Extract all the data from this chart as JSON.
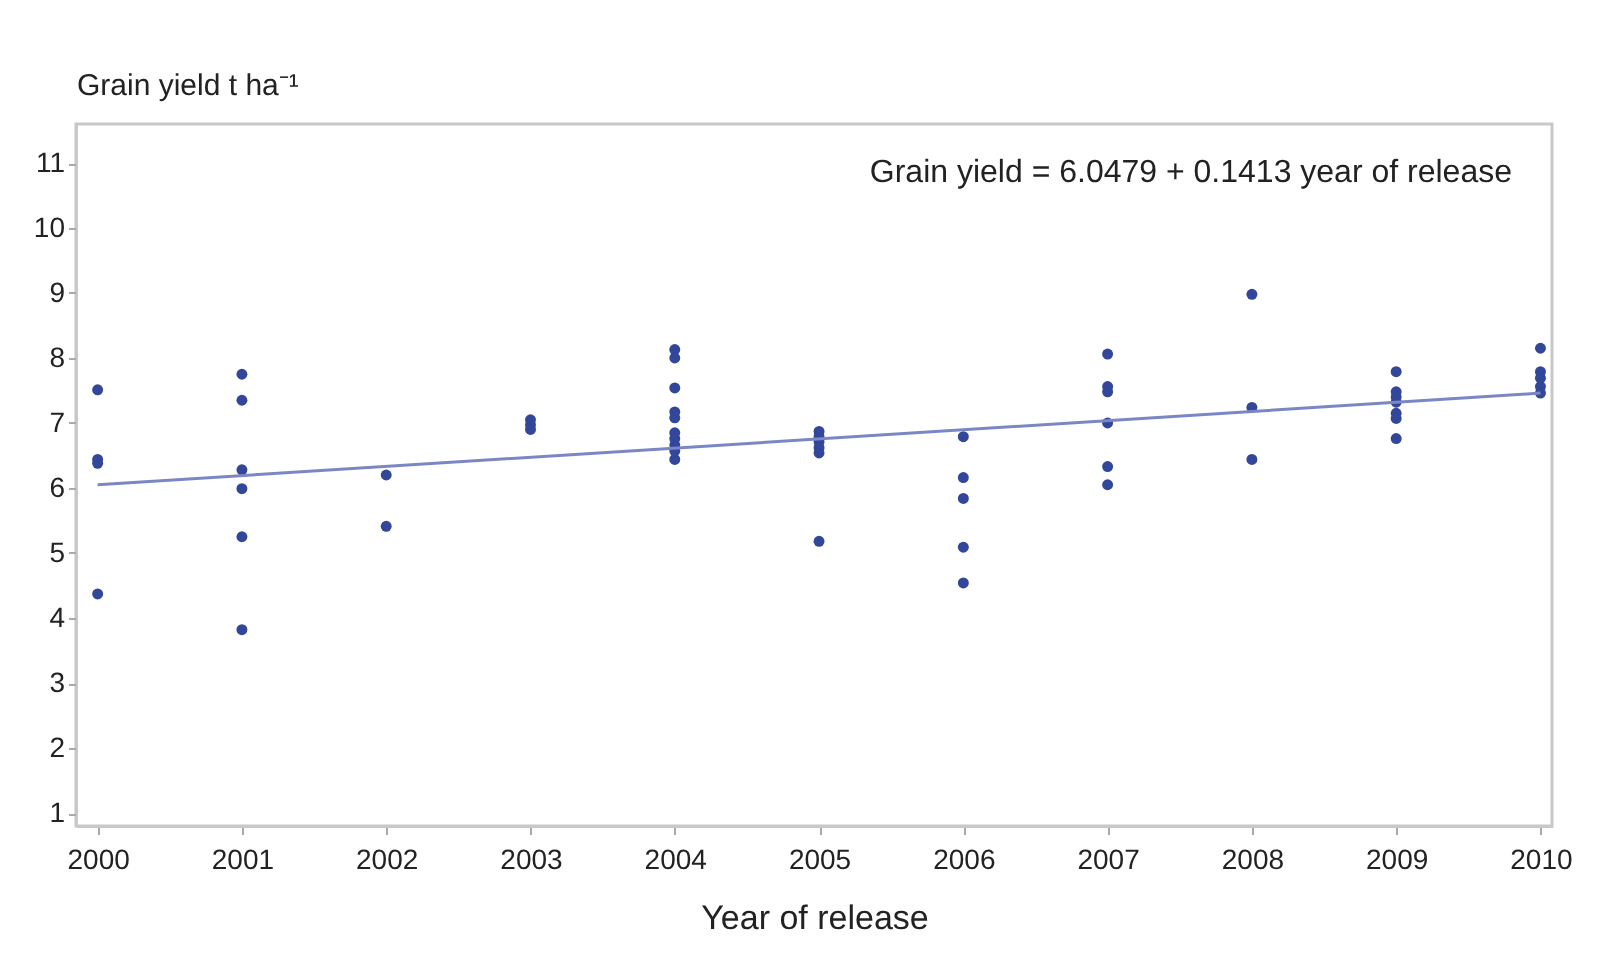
{
  "chart_data": {
    "type": "scatter",
    "ylabel": "Grain yield t ha⁻¹",
    "xlabel": "Year of release",
    "annotations": [
      "Grain yield = 6.0479 + 0.1413 year of release"
    ],
    "xlim": [
      1999.85,
      2010.08
    ],
    "xticks": [
      2000,
      2001,
      2002,
      2003,
      2004,
      2005,
      2006,
      2007,
      2008,
      2009,
      2010
    ],
    "ylim": [
      0.8,
      11.6
    ],
    "yticks": [
      1,
      2,
      3,
      4,
      5,
      6,
      7,
      8,
      9,
      10,
      11
    ],
    "grid": false,
    "marker": "circle",
    "series": [
      {
        "color": "#33479a",
        "x": [
          2000,
          2000,
          2000,
          2000,
          2001,
          2001,
          2001,
          2001,
          2001,
          2001,
          2002,
          2002,
          2003,
          2003,
          2003,
          2004,
          2004,
          2004,
          2004,
          2004,
          2004,
          2004,
          2004,
          2004,
          2004,
          2005,
          2005,
          2005,
          2005,
          2005,
          2005,
          2006,
          2006,
          2006,
          2006,
          2006,
          2007,
          2007,
          2007,
          2007,
          2007,
          2007,
          2008,
          2008,
          2008,
          2009,
          2009,
          2009,
          2009,
          2009,
          2009,
          2009,
          2010,
          2010,
          2010,
          2010,
          2010
        ],
        "values": [
          7.51,
          6.44,
          6.38,
          4.37,
          7.75,
          7.35,
          6.28,
          5.99,
          5.25,
          3.82,
          6.2,
          5.41,
          7.05,
          6.97,
          6.9,
          8.13,
          8.0,
          7.54,
          7.17,
          7.08,
          6.85,
          6.76,
          6.66,
          6.57,
          6.44,
          6.87,
          6.79,
          6.71,
          6.62,
          6.54,
          5.18,
          6.79,
          6.16,
          5.84,
          5.09,
          4.54,
          8.06,
          7.56,
          7.48,
          7.0,
          6.33,
          6.05,
          8.98,
          7.24,
          6.44,
          7.79,
          7.48,
          7.4,
          7.32,
          7.15,
          7.07,
          6.76,
          8.15,
          7.79,
          7.69,
          7.56,
          7.46
        ]
      },
      {
        "type": "line",
        "marker": "none",
        "color": "#7b87c4",
        "x": [
          2000,
          2010
        ],
        "values": [
          6.05,
          7.46
        ]
      }
    ]
  }
}
